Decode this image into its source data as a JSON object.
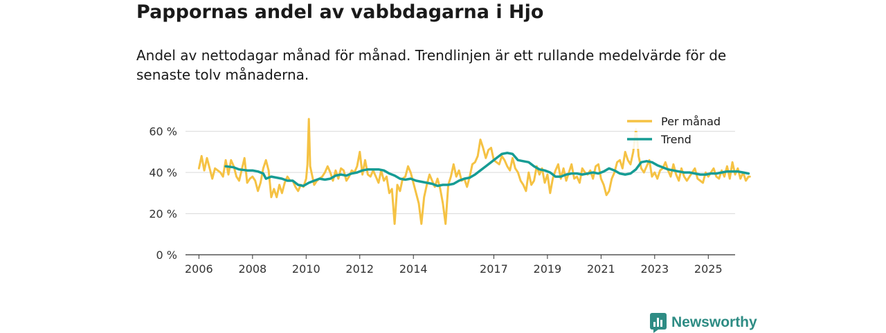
{
  "header": {
    "title": "Pappornas andel av vabbdagarna i Hjo",
    "subtitle": "Andel av nettodagar månad för månad. Trendlinjen är ett rullande medelvärde för de senaste tolv månaderna."
  },
  "brand": {
    "name": "Newsworthy",
    "icon": "newsworthy-logo-icon",
    "color": "#2e8c84"
  },
  "chart_data": {
    "type": "line",
    "title": "Pappornas andel av vabbdagarna i Hjo",
    "xlabel": "",
    "ylabel": "",
    "x_range": [
      2005.5,
      2026.0
    ],
    "ylim": [
      0,
      70
    ],
    "y_ticks": [
      0,
      20,
      40,
      60
    ],
    "y_tick_labels": [
      "0 %",
      "20 %",
      "40 %",
      "60 %"
    ],
    "x_ticks": [
      2006,
      2008,
      2010,
      2012,
      2014,
      2017,
      2019,
      2021,
      2023,
      2025
    ],
    "x_tick_labels": [
      "2006",
      "2008",
      "2010",
      "2012",
      "2014",
      "2017",
      "2019",
      "2021",
      "2023",
      "2025"
    ],
    "grid": "horizontal",
    "legend_position": "top-right",
    "series": [
      {
        "name": "Per månad",
        "color": "#f5c244",
        "points": [
          [
            2006.0,
            42
          ],
          [
            2006.1,
            48
          ],
          [
            2006.2,
            41
          ],
          [
            2006.3,
            47
          ],
          [
            2006.4,
            42
          ],
          [
            2006.5,
            37
          ],
          [
            2006.6,
            42
          ],
          [
            2006.8,
            40
          ],
          [
            2006.9,
            38
          ],
          [
            2007.0,
            46
          ],
          [
            2007.1,
            39
          ],
          [
            2007.2,
            46
          ],
          [
            2007.3,
            43
          ],
          [
            2007.4,
            38
          ],
          [
            2007.5,
            36
          ],
          [
            2007.7,
            47
          ],
          [
            2007.8,
            35
          ],
          [
            2007.9,
            37
          ],
          [
            2008.0,
            38
          ],
          [
            2008.1,
            36
          ],
          [
            2008.2,
            31
          ],
          [
            2008.3,
            35
          ],
          [
            2008.4,
            42
          ],
          [
            2008.5,
            46
          ],
          [
            2008.6,
            41
          ],
          [
            2008.7,
            28
          ],
          [
            2008.8,
            32
          ],
          [
            2008.9,
            28
          ],
          [
            2009.0,
            34
          ],
          [
            2009.1,
            30
          ],
          [
            2009.2,
            35
          ],
          [
            2009.3,
            38
          ],
          [
            2009.4,
            36
          ],
          [
            2009.5,
            36
          ],
          [
            2009.6,
            33
          ],
          [
            2009.7,
            31
          ],
          [
            2009.8,
            34
          ],
          [
            2009.9,
            33
          ],
          [
            2010.0,
            37
          ],
          [
            2010.05,
            44
          ],
          [
            2010.1,
            66
          ],
          [
            2010.15,
            43
          ],
          [
            2010.2,
            40
          ],
          [
            2010.3,
            34
          ],
          [
            2010.4,
            36
          ],
          [
            2010.5,
            37
          ],
          [
            2010.6,
            38
          ],
          [
            2010.7,
            40
          ],
          [
            2010.8,
            43
          ],
          [
            2010.9,
            40
          ],
          [
            2011.0,
            36
          ],
          [
            2011.1,
            41
          ],
          [
            2011.2,
            37
          ],
          [
            2011.3,
            42
          ],
          [
            2011.4,
            41
          ],
          [
            2011.5,
            36
          ],
          [
            2011.6,
            38
          ],
          [
            2011.7,
            41
          ],
          [
            2011.8,
            40
          ],
          [
            2011.9,
            43
          ],
          [
            2012.0,
            50
          ],
          [
            2012.1,
            39
          ],
          [
            2012.2,
            46
          ],
          [
            2012.3,
            39
          ],
          [
            2012.4,
            38
          ],
          [
            2012.5,
            41
          ],
          [
            2012.6,
            38
          ],
          [
            2012.7,
            35
          ],
          [
            2012.8,
            41
          ],
          [
            2012.9,
            36
          ],
          [
            2013.0,
            38
          ],
          [
            2013.1,
            30
          ],
          [
            2013.2,
            32
          ],
          [
            2013.3,
            15
          ],
          [
            2013.4,
            34
          ],
          [
            2013.5,
            31
          ],
          [
            2013.6,
            37
          ],
          [
            2013.7,
            38
          ],
          [
            2013.8,
            43
          ],
          [
            2013.9,
            40
          ],
          [
            2014.0,
            35
          ],
          [
            2014.1,
            30
          ],
          [
            2014.2,
            25
          ],
          [
            2014.3,
            15
          ],
          [
            2014.4,
            28
          ],
          [
            2014.5,
            34
          ],
          [
            2014.6,
            39
          ],
          [
            2014.7,
            36
          ],
          [
            2014.8,
            33
          ],
          [
            2014.9,
            37
          ],
          [
            2015.0,
            32
          ],
          [
            2015.1,
            25
          ],
          [
            2015.2,
            15
          ],
          [
            2015.3,
            34
          ],
          [
            2015.4,
            38
          ],
          [
            2015.5,
            44
          ],
          [
            2015.6,
            38
          ],
          [
            2015.7,
            41
          ],
          [
            2015.8,
            36
          ],
          [
            2015.9,
            37
          ],
          [
            2016.0,
            33
          ],
          [
            2016.1,
            38
          ],
          [
            2016.2,
            44
          ],
          [
            2016.3,
            45
          ],
          [
            2016.4,
            48
          ],
          [
            2016.5,
            56
          ],
          [
            2016.6,
            52
          ],
          [
            2016.7,
            47
          ],
          [
            2016.8,
            51
          ],
          [
            2016.9,
            52
          ],
          [
            2017.0,
            46
          ],
          [
            2017.1,
            45
          ],
          [
            2017.2,
            44
          ],
          [
            2017.3,
            48
          ],
          [
            2017.4,
            46
          ],
          [
            2017.5,
            43
          ],
          [
            2017.6,
            41
          ],
          [
            2017.7,
            47
          ],
          [
            2017.8,
            42
          ],
          [
            2017.9,
            40
          ],
          [
            2018.0,
            36
          ],
          [
            2018.1,
            34
          ],
          [
            2018.2,
            31
          ],
          [
            2018.3,
            40
          ],
          [
            2018.4,
            34
          ],
          [
            2018.5,
            36
          ],
          [
            2018.6,
            43
          ],
          [
            2018.7,
            39
          ],
          [
            2018.8,
            42
          ],
          [
            2018.9,
            35
          ],
          [
            2019.0,
            39
          ],
          [
            2019.1,
            30
          ],
          [
            2019.2,
            37
          ],
          [
            2019.3,
            41
          ],
          [
            2019.4,
            44
          ],
          [
            2019.5,
            37
          ],
          [
            2019.6,
            42
          ],
          [
            2019.7,
            36
          ],
          [
            2019.8,
            40
          ],
          [
            2019.9,
            44
          ],
          [
            2020.0,
            37
          ],
          [
            2020.1,
            38
          ],
          [
            2020.2,
            35
          ],
          [
            2020.3,
            42
          ],
          [
            2020.4,
            40
          ],
          [
            2020.5,
            39
          ],
          [
            2020.6,
            41
          ],
          [
            2020.7,
            37
          ],
          [
            2020.8,
            43
          ],
          [
            2020.9,
            44
          ],
          [
            2021.0,
            37
          ],
          [
            2021.1,
            34
          ],
          [
            2021.2,
            29
          ],
          [
            2021.3,
            31
          ],
          [
            2021.4,
            37
          ],
          [
            2021.5,
            40
          ],
          [
            2021.6,
            45
          ],
          [
            2021.7,
            46
          ],
          [
            2021.8,
            42
          ],
          [
            2021.9,
            50
          ],
          [
            2022.0,
            46
          ],
          [
            2022.1,
            44
          ],
          [
            2022.2,
            50
          ],
          [
            2022.3,
            61
          ],
          [
            2022.35,
            56
          ],
          [
            2022.4,
            48
          ],
          [
            2022.5,
            42
          ],
          [
            2022.6,
            40
          ],
          [
            2022.7,
            43
          ],
          [
            2022.8,
            46
          ],
          [
            2022.9,
            38
          ],
          [
            2023.0,
            40
          ],
          [
            2023.1,
            37
          ],
          [
            2023.2,
            41
          ],
          [
            2023.3,
            42
          ],
          [
            2023.4,
            45
          ],
          [
            2023.5,
            41
          ],
          [
            2023.6,
            38
          ],
          [
            2023.7,
            44
          ],
          [
            2023.8,
            39
          ],
          [
            2023.9,
            36
          ],
          [
            2024.0,
            42
          ],
          [
            2024.1,
            38
          ],
          [
            2024.2,
            36
          ],
          [
            2024.3,
            38
          ],
          [
            2024.4,
            40
          ],
          [
            2024.5,
            42
          ],
          [
            2024.6,
            37
          ],
          [
            2024.7,
            36
          ],
          [
            2024.8,
            35
          ],
          [
            2024.9,
            40
          ],
          [
            2025.0,
            38
          ],
          [
            2025.1,
            40
          ],
          [
            2025.2,
            42
          ],
          [
            2025.3,
            38
          ],
          [
            2025.4,
            37
          ],
          [
            2025.5,
            41
          ],
          [
            2025.6,
            38
          ],
          [
            2025.7,
            43
          ],
          [
            2025.8,
            37
          ],
          [
            2025.9,
            45
          ],
          [
            2026.0,
            39
          ],
          [
            2026.1,
            42
          ],
          [
            2026.2,
            37
          ],
          [
            2026.3,
            40
          ],
          [
            2026.4,
            36
          ],
          [
            2026.5,
            38
          ],
          [
            2026.55,
            38
          ]
        ]
      },
      {
        "name": "Trend",
        "color": "#169c94",
        "points": [
          [
            2007.0,
            43
          ],
          [
            2007.3,
            42.5
          ],
          [
            2007.5,
            41.5
          ],
          [
            2007.8,
            41
          ],
          [
            2008.0,
            41
          ],
          [
            2008.2,
            40.5
          ],
          [
            2008.4,
            39.5
          ],
          [
            2008.5,
            37
          ],
          [
            2008.7,
            38
          ],
          [
            2008.9,
            37.5
          ],
          [
            2009.1,
            37
          ],
          [
            2009.3,
            36
          ],
          [
            2009.5,
            36
          ],
          [
            2009.7,
            34
          ],
          [
            2009.9,
            33.5
          ],
          [
            2010.1,
            35
          ],
          [
            2010.3,
            36
          ],
          [
            2010.5,
            37
          ],
          [
            2010.7,
            36.5
          ],
          [
            2010.9,
            37
          ],
          [
            2011.1,
            38.5
          ],
          [
            2011.3,
            39
          ],
          [
            2011.5,
            38.5
          ],
          [
            2011.7,
            39.5
          ],
          [
            2011.9,
            40
          ],
          [
            2012.1,
            41
          ],
          [
            2012.3,
            41.5
          ],
          [
            2012.5,
            41.5
          ],
          [
            2012.7,
            41.5
          ],
          [
            2012.9,
            41
          ],
          [
            2013.1,
            39.5
          ],
          [
            2013.3,
            38.5
          ],
          [
            2013.5,
            37
          ],
          [
            2013.7,
            36.5
          ],
          [
            2013.9,
            37
          ],
          [
            2014.1,
            36
          ],
          [
            2014.3,
            35.5
          ],
          [
            2014.5,
            35
          ],
          [
            2014.7,
            34.5
          ],
          [
            2014.9,
            33.5
          ],
          [
            2015.1,
            34
          ],
          [
            2015.3,
            34
          ],
          [
            2015.5,
            34.5
          ],
          [
            2015.7,
            36
          ],
          [
            2015.9,
            37
          ],
          [
            2016.1,
            37.5
          ],
          [
            2016.3,
            39
          ],
          [
            2016.5,
            41
          ],
          [
            2016.7,
            43
          ],
          [
            2016.9,
            45
          ],
          [
            2017.1,
            47
          ],
          [
            2017.3,
            49
          ],
          [
            2017.5,
            49.5
          ],
          [
            2017.7,
            49
          ],
          [
            2017.9,
            46
          ],
          [
            2018.1,
            45.5
          ],
          [
            2018.3,
            45
          ],
          [
            2018.5,
            43
          ],
          [
            2018.7,
            41.5
          ],
          [
            2018.9,
            41
          ],
          [
            2019.1,
            40
          ],
          [
            2019.3,
            38
          ],
          [
            2019.5,
            38
          ],
          [
            2019.7,
            39
          ],
          [
            2019.9,
            39.5
          ],
          [
            2020.1,
            39.5
          ],
          [
            2020.3,
            39
          ],
          [
            2020.5,
            39.5
          ],
          [
            2020.7,
            40
          ],
          [
            2020.9,
            39.5
          ],
          [
            2021.1,
            40.5
          ],
          [
            2021.3,
            42
          ],
          [
            2021.5,
            41
          ],
          [
            2021.7,
            39.5
          ],
          [
            2021.9,
            39
          ],
          [
            2022.1,
            39.5
          ],
          [
            2022.3,
            41.5
          ],
          [
            2022.5,
            45
          ],
          [
            2022.7,
            45.5
          ],
          [
            2022.9,
            45
          ],
          [
            2023.1,
            43.5
          ],
          [
            2023.3,
            42.5
          ],
          [
            2023.5,
            41.5
          ],
          [
            2023.7,
            41
          ],
          [
            2023.9,
            40.5
          ],
          [
            2024.1,
            40
          ],
          [
            2024.3,
            40
          ],
          [
            2024.5,
            39.5
          ],
          [
            2024.7,
            39
          ],
          [
            2024.9,
            39
          ],
          [
            2025.1,
            39.5
          ],
          [
            2025.3,
            39.5
          ],
          [
            2025.5,
            40
          ],
          [
            2025.7,
            40.5
          ],
          [
            2025.9,
            40.5
          ],
          [
            2026.1,
            40.5
          ],
          [
            2026.3,
            40
          ],
          [
            2026.5,
            39.5
          ]
        ]
      }
    ]
  }
}
